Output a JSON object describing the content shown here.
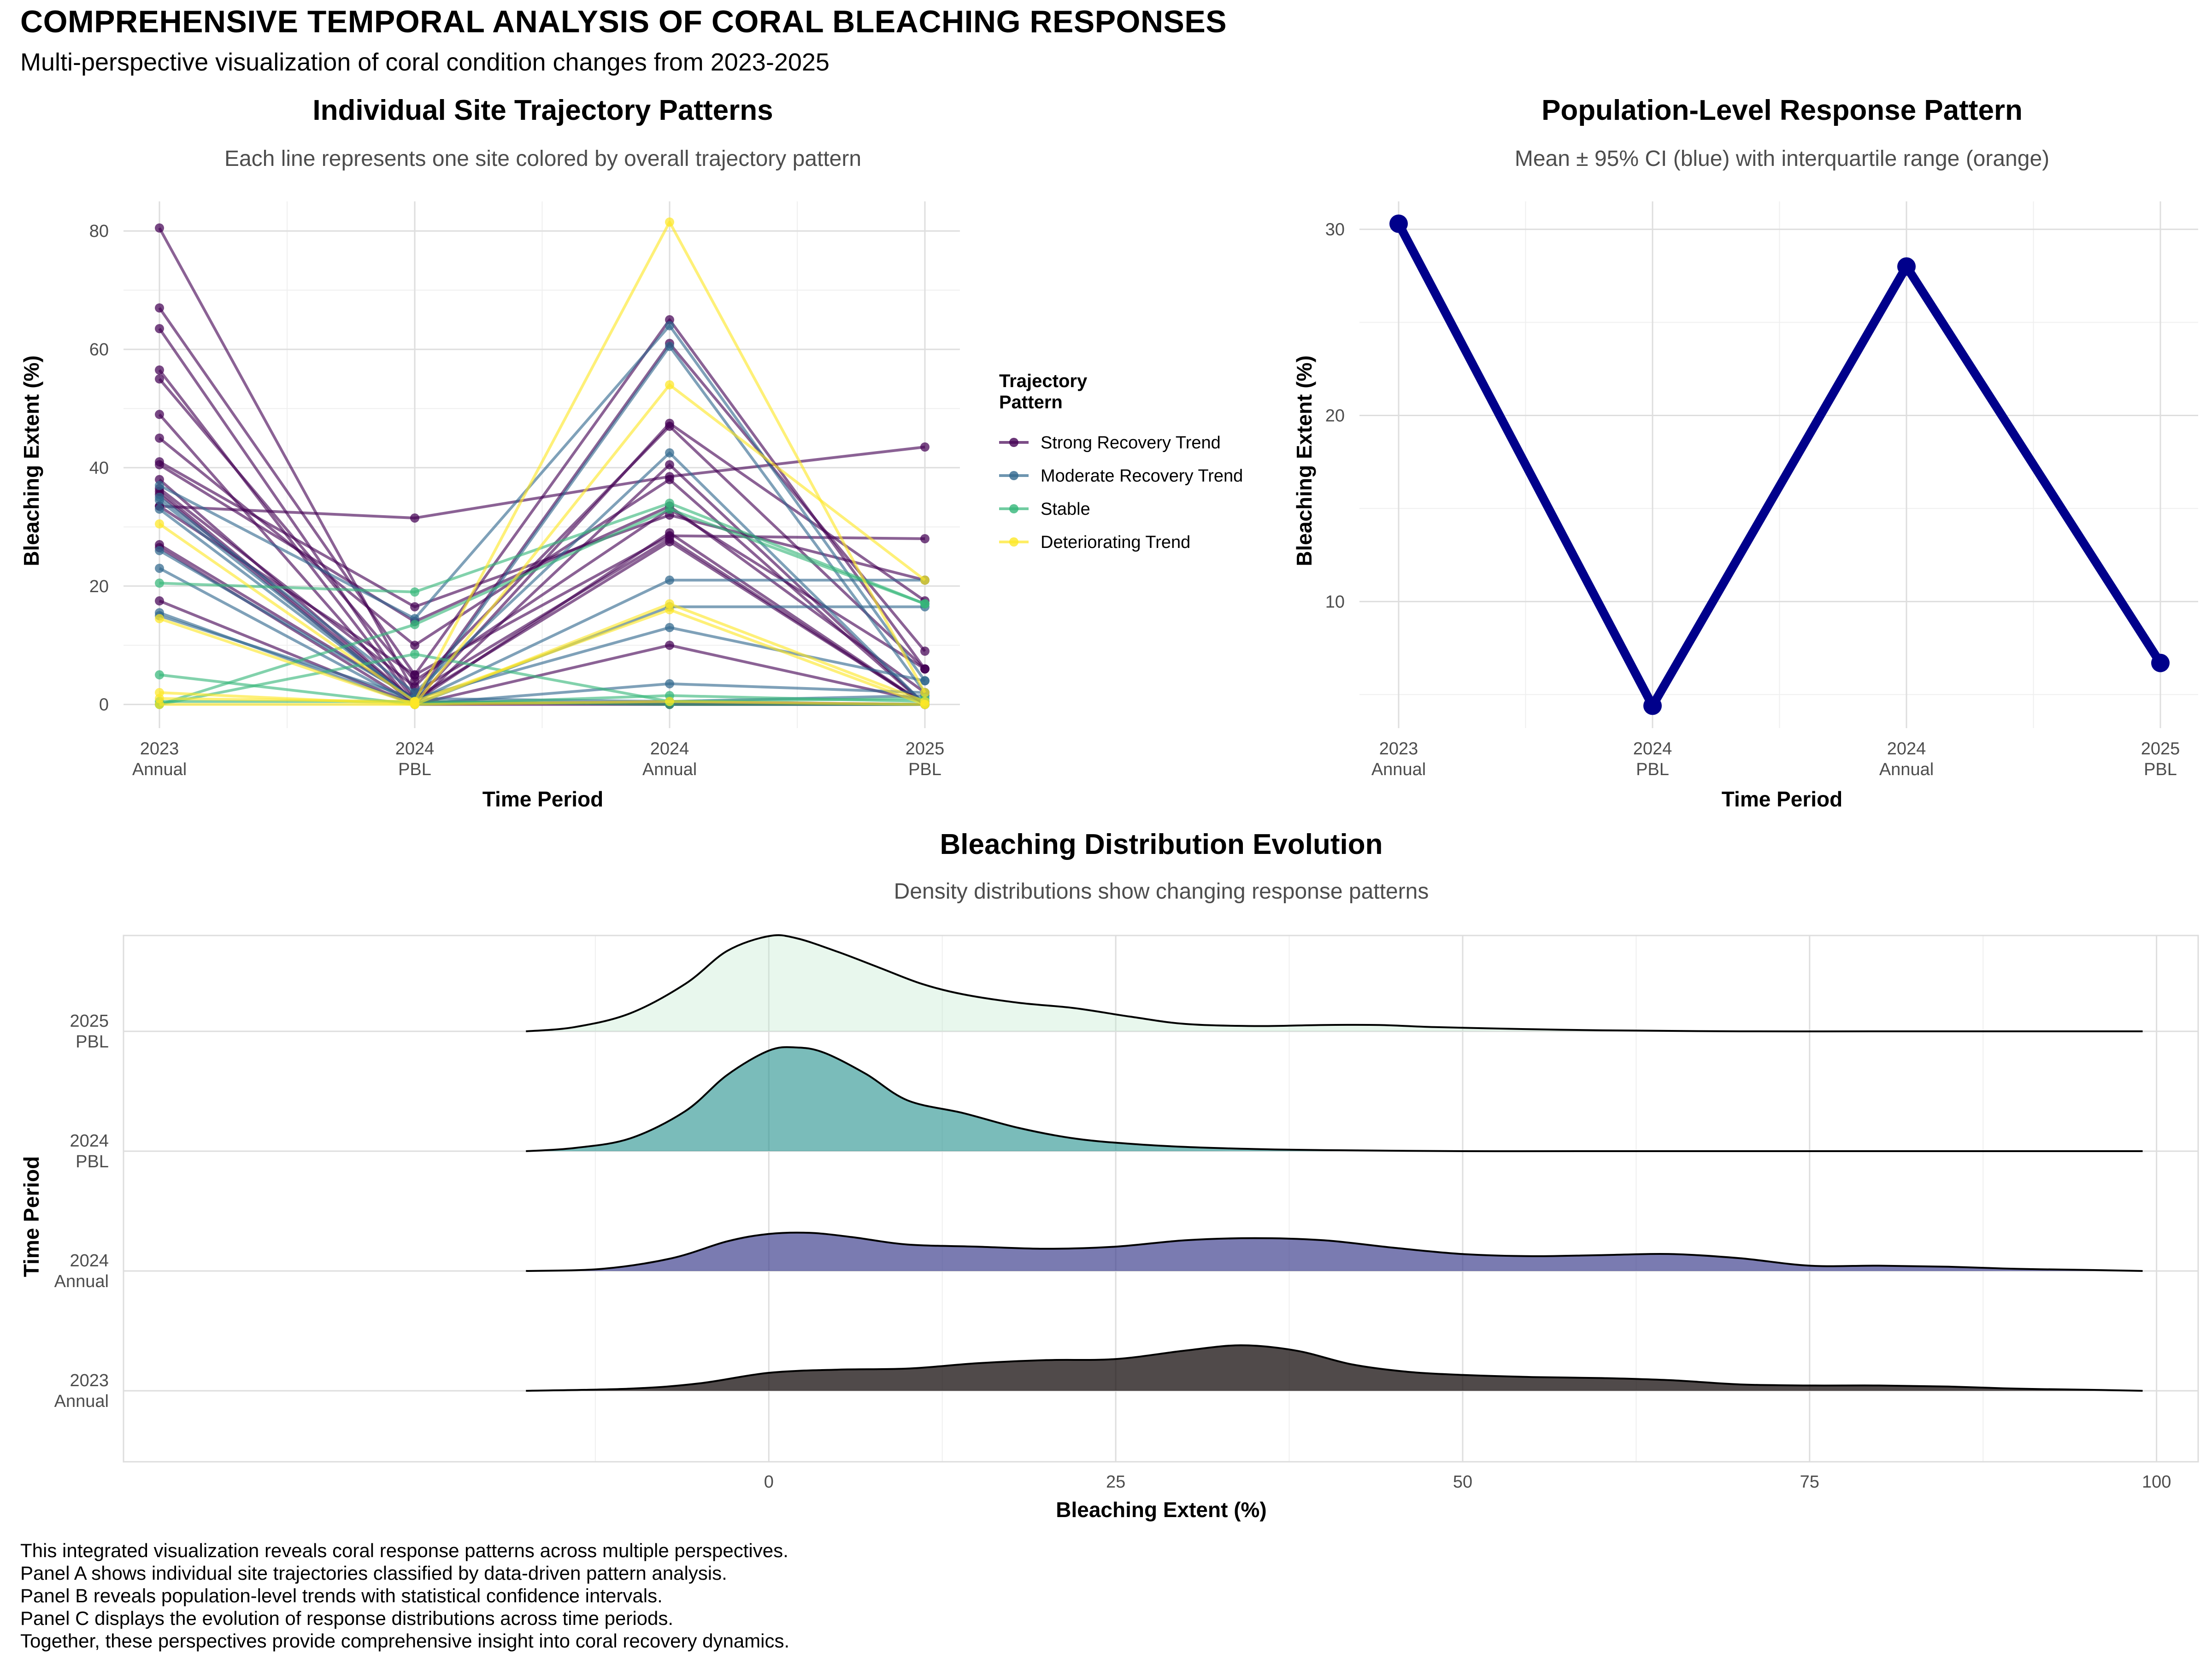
{
  "title": "COMPREHENSIVE TEMPORAL ANALYSIS OF CORAL BLEACHING RESPONSES",
  "subtitle": "Multi-perspective visualization of coral condition changes from 2023-2025",
  "caption": [
    "This integrated visualization reveals coral response patterns across multiple perspectives.",
    "Panel A shows individual site trajectories classified by data-driven pattern analysis.",
    "Panel B reveals population-level trends with statistical confidence intervals.",
    "Panel C displays the evolution of response distributions across time periods.",
    "Together, these perspectives provide comprehensive insight into coral recovery dynamics."
  ],
  "chart_data": [
    {
      "type": "line",
      "title": "Individual Site Trajectory Patterns",
      "subtitle": "Each line represents one site colored by overall trajectory pattern",
      "xlabel": "Time Period",
      "ylabel": "Bleaching Extent (%)",
      "categories": [
        [
          "2023",
          "Annual"
        ],
        [
          "2024",
          "PBL"
        ],
        [
          "2024",
          "Annual"
        ],
        [
          "2025",
          "PBL"
        ]
      ],
      "ylim": [
        -4,
        85
      ],
      "yticks": [
        0,
        20,
        40,
        60,
        80
      ],
      "legend": {
        "title": [
          "Trajectory",
          "Pattern"
        ],
        "position": "right"
      },
      "groups": [
        {
          "name": "Strong Recovery Trend",
          "color": "#440154"
        },
        {
          "name": "Moderate Recovery Trend",
          "color": "#31688E"
        },
        {
          "name": "Stable",
          "color": "#35B779"
        },
        {
          "name": "Deteriorating Trend",
          "color": "#FDE725"
        }
      ],
      "series": [
        {
          "group": 0,
          "values": [
            80.5,
            2.0,
            28.0,
            0.0
          ]
        },
        {
          "group": 0,
          "values": [
            67.0,
            5.0,
            65.0,
            6.0
          ]
        },
        {
          "group": 0,
          "values": [
            63.5,
            1.0,
            61.0,
            9.0
          ]
        },
        {
          "group": 0,
          "values": [
            56.5,
            0.5,
            47.5,
            17.5
          ]
        },
        {
          "group": 0,
          "values": [
            55.0,
            4.0,
            33.0,
            6.0
          ]
        },
        {
          "group": 0,
          "values": [
            49.0,
            0.0,
            40.5,
            0.0
          ]
        },
        {
          "group": 0,
          "values": [
            45.0,
            10.0,
            38.0,
            0.0
          ]
        },
        {
          "group": 0,
          "values": [
            41.0,
            16.5,
            32.0,
            21.0
          ]
        },
        {
          "group": 0,
          "values": [
            40.5,
            14.0,
            33.5,
            2.0
          ]
        },
        {
          "group": 0,
          "values": [
            38.0,
            0.5,
            29.0,
            0.0
          ]
        },
        {
          "group": 0,
          "values": [
            36.5,
            3.0,
            47.0,
            6.0
          ]
        },
        {
          "group": 0,
          "values": [
            35.5,
            0.0,
            10.0,
            0.5
          ]
        },
        {
          "group": 0,
          "values": [
            33.5,
            31.5,
            38.5,
            43.5
          ]
        },
        {
          "group": 0,
          "values": [
            27.0,
            1.0,
            27.5,
            0.0
          ]
        },
        {
          "group": 0,
          "values": [
            26.5,
            0.0,
            0.5,
            0.0
          ]
        },
        {
          "group": 0,
          "values": [
            17.5,
            0.0,
            0.0,
            0.0
          ]
        },
        {
          "group": 0,
          "values": [
            33.5,
            5.0,
            28.5,
            28.0
          ]
        },
        {
          "group": 0,
          "values": [
            36.0,
            0.5,
            0.0,
            0.0
          ]
        },
        {
          "group": 1,
          "values": [
            37.0,
            14.5,
            64.0,
            4.0
          ]
        },
        {
          "group": 1,
          "values": [
            34.5,
            0.5,
            60.5,
            2.0
          ]
        },
        {
          "group": 1,
          "values": [
            35.0,
            2.0,
            42.5,
            0.0
          ]
        },
        {
          "group": 1,
          "values": [
            33.0,
            0.5,
            21.0,
            21.0
          ]
        },
        {
          "group": 1,
          "values": [
            26.0,
            1.0,
            13.0,
            4.0
          ]
        },
        {
          "group": 1,
          "values": [
            23.0,
            0.0,
            16.5,
            16.5
          ]
        },
        {
          "group": 1,
          "values": [
            15.5,
            0.0,
            3.5,
            2.0
          ]
        },
        {
          "group": 1,
          "values": [
            15.0,
            1.0,
            0.5,
            1.5
          ]
        },
        {
          "group": 2,
          "values": [
            20.5,
            19.0,
            34.0,
            17.0
          ]
        },
        {
          "group": 2,
          "values": [
            5.0,
            0.0,
            1.5,
            0.5
          ]
        },
        {
          "group": 2,
          "values": [
            0.0,
            8.5,
            0.5,
            1.0
          ]
        },
        {
          "group": 2,
          "values": [
            0.5,
            0.5,
            0.0,
            0.0
          ]
        },
        {
          "group": 2,
          "values": [
            0.0,
            13.5,
            33.0,
            17.0
          ]
        },
        {
          "group": 3,
          "values": [
            30.5,
            0.5,
            81.5,
            2.0
          ]
        },
        {
          "group": 3,
          "values": [
            14.5,
            0.0,
            54.0,
            21.0
          ]
        },
        {
          "group": 3,
          "values": [
            2.0,
            0.0,
            17.0,
            0.5
          ]
        },
        {
          "group": 3,
          "values": [
            1.0,
            0.5,
            16.0,
            0.0
          ]
        },
        {
          "group": 3,
          "values": [
            0.0,
            0.0,
            0.5,
            0.0
          ]
        }
      ]
    },
    {
      "type": "line",
      "title": "Population-Level Response Pattern",
      "subtitle": "Mean ± 95% CI (blue) with interquartile range (orange)",
      "xlabel": "Time Period",
      "ylabel": "Bleaching Extent (%)",
      "categories": [
        [
          "2023",
          "Annual"
        ],
        [
          "2024",
          "PBL"
        ],
        [
          "2024",
          "Annual"
        ],
        [
          "2025",
          "PBL"
        ]
      ],
      "ylim": [
        3.2,
        31.5
      ],
      "yticks": [
        10,
        20,
        30
      ],
      "color": "#00008B",
      "values": [
        30.3,
        4.4,
        28.0,
        6.7
      ]
    },
    {
      "type": "area",
      "title": "Bleaching Distribution Evolution",
      "subtitle": "Density distributions show changing response patterns",
      "xlabel": "Bleaching Extent (%)",
      "ylabel": "Time Period",
      "xlim": [
        -46.5,
        103
      ],
      "xticks": [
        0,
        25,
        50,
        75,
        100
      ],
      "range": [
        -17.5,
        99
      ],
      "rows": [
        {
          "label": [
            "2023",
            "Annual"
          ],
          "color": "#0C0404",
          "opacity": 0.72,
          "x": [
            -17.5,
            -10,
            -5,
            0,
            5,
            10,
            15,
            20,
            25,
            30,
            34,
            38,
            42,
            46,
            50,
            55,
            60,
            65,
            70,
            75,
            80,
            85,
            90,
            95,
            99
          ],
          "y": [
            0.0,
            0.02,
            0.07,
            0.17,
            0.2,
            0.21,
            0.26,
            0.29,
            0.3,
            0.38,
            0.43,
            0.38,
            0.25,
            0.18,
            0.15,
            0.13,
            0.12,
            0.1,
            0.06,
            0.05,
            0.05,
            0.04,
            0.02,
            0.01,
            0.0
          ]
        },
        {
          "label": [
            "2024",
            "Annual"
          ],
          "color": "#3B3C8C",
          "opacity": 0.68,
          "x": [
            -17.5,
            -12,
            -7,
            -3,
            0,
            3,
            6,
            10,
            15,
            20,
            25,
            30,
            35,
            40,
            45,
            50,
            55,
            60,
            65,
            70,
            75,
            80,
            85,
            90,
            95,
            99
          ],
          "y": [
            0.0,
            0.02,
            0.12,
            0.28,
            0.35,
            0.36,
            0.32,
            0.25,
            0.23,
            0.21,
            0.23,
            0.29,
            0.31,
            0.29,
            0.22,
            0.16,
            0.14,
            0.15,
            0.16,
            0.12,
            0.05,
            0.05,
            0.04,
            0.02,
            0.01,
            0.0
          ]
        },
        {
          "label": [
            "2024",
            "PBL"
          ],
          "color": "#21908C",
          "opacity": 0.6,
          "x": [
            -17.5,
            -14,
            -10,
            -6,
            -3,
            0,
            2,
            4,
            7,
            10,
            14,
            18,
            22,
            26,
            30,
            35,
            40,
            50,
            60,
            99
          ],
          "y": [
            0.0,
            0.03,
            0.12,
            0.38,
            0.72,
            0.95,
            0.98,
            0.93,
            0.73,
            0.48,
            0.36,
            0.22,
            0.12,
            0.07,
            0.04,
            0.02,
            0.01,
            0.0,
            0.0,
            0.0
          ]
        },
        {
          "label": [
            "2025",
            "PBL"
          ],
          "color": "#BDE8CC",
          "opacity": 0.35,
          "x": [
            -17.5,
            -14,
            -10,
            -6,
            -3,
            0,
            2,
            5,
            8,
            11,
            14,
            18,
            22,
            26,
            30,
            35,
            40,
            44,
            48,
            55,
            60,
            70,
            80,
            90,
            99
          ],
          "y": [
            0.0,
            0.04,
            0.17,
            0.45,
            0.76,
            0.9,
            0.88,
            0.75,
            0.6,
            0.45,
            0.35,
            0.27,
            0.22,
            0.14,
            0.07,
            0.05,
            0.06,
            0.06,
            0.04,
            0.02,
            0.01,
            0.0,
            0.0,
            0.0,
            0.0
          ]
        }
      ]
    }
  ]
}
